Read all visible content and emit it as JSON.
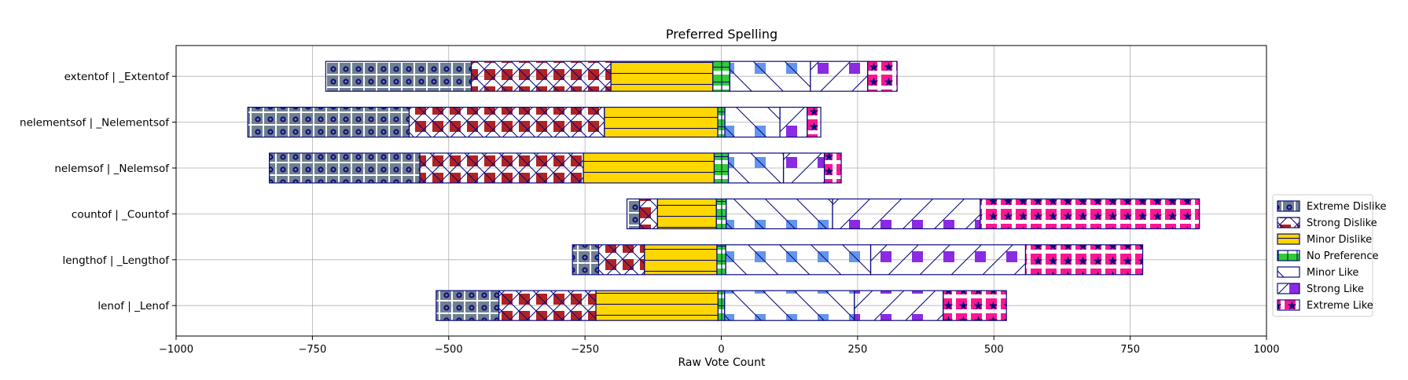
{
  "chart_data": {
    "type": "bar",
    "orientation": "horizontal",
    "stacked": "diverging",
    "title": "Preferred Spelling",
    "xlabel": "Raw Vote Count",
    "ylabel": "",
    "xlim": [
      -1000,
      1000
    ],
    "xticks": [
      -1000,
      -750,
      -500,
      -250,
      0,
      250,
      500,
      750,
      1000
    ],
    "xtick_labels": [
      "−1000",
      "−750",
      "−500",
      "−250",
      "0",
      "250",
      "500",
      "750",
      "1000"
    ],
    "grid": true,
    "legend_position": "right",
    "categories": [
      "extentof | _Extentof",
      "nelementsof | _Nelementsof",
      "nelemsof | _Nelemsof",
      "countof | _Countof",
      "lengthof | _Lengthof",
      "lenof | _Lenof"
    ],
    "series": [
      {
        "name": "Extreme Dislike",
        "color": "#708090",
        "hatch": "circles",
        "values": [
          267,
          296,
          276,
          23,
          48,
          115
        ]
      },
      {
        "name": "Strong Dislike",
        "color": "#b22222",
        "hatch": "cross",
        "values": [
          256,
          358,
          300,
          33,
          84,
          178
        ]
      },
      {
        "name": "Minor Dislike",
        "color": "#ffd700",
        "hatch": "horizontal",
        "values": [
          187,
          208,
          240,
          108,
          133,
          224
        ]
      },
      {
        "name": "No Preference",
        "color": "#32cd32",
        "hatch": "grid",
        "values": [
          31,
          13,
          26,
          18,
          16,
          12
        ]
      },
      {
        "name": "Minor Like",
        "color": "#6495ed",
        "hatch": "backslash",
        "values": [
          148,
          101,
          101,
          195,
          266,
          238
        ]
      },
      {
        "name": "Strong Like",
        "color": "#8a2be2",
        "hatch": "slash",
        "values": [
          105,
          50,
          75,
          271,
          284,
          163
        ]
      },
      {
        "name": "Extreme Like",
        "color": "#ff1493",
        "hatch": "stars",
        "values": [
          54,
          25,
          31,
          402,
          215,
          116
        ]
      }
    ]
  }
}
